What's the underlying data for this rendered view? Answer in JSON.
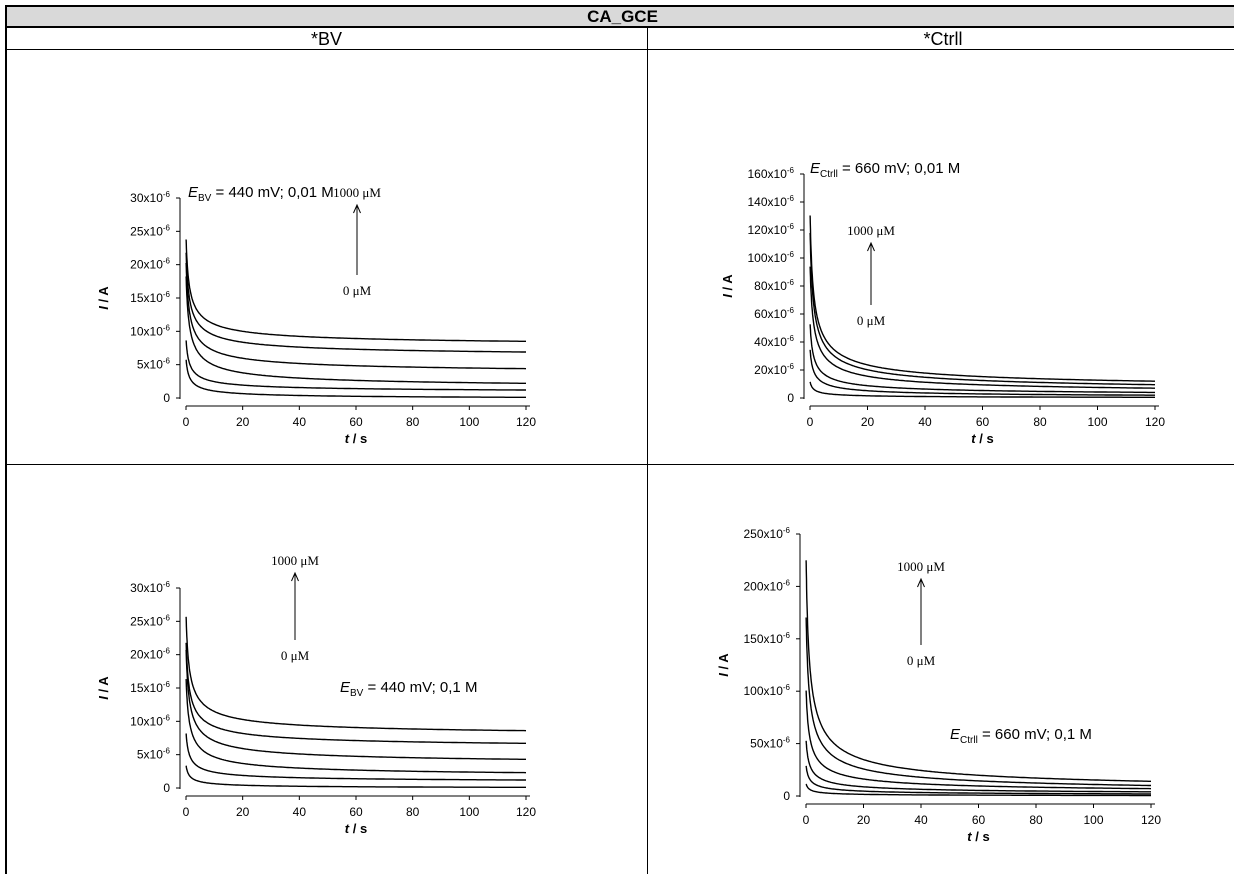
{
  "table": {
    "title": "CA_GCE",
    "col_left": "*BV",
    "col_right": "*Ctrll"
  },
  "chart_data": [
    {
      "type": "line",
      "panel": "top-left",
      "xlabel": "t / s",
      "ylabel": "I / A",
      "xlim": [
        0,
        120
      ],
      "ylim": [
        0,
        3e-05
      ],
      "xticks": [
        "0",
        "20",
        "40",
        "60",
        "80",
        "100",
        "120"
      ],
      "yticks": [
        "0",
        "5x10-6",
        "10x10-6",
        "15x10-6",
        "20x10-6",
        "25x10-6",
        "30x10-6"
      ],
      "annotation": "E_BV = 440 mV; 0,01 M",
      "arrow_top": "1000 μM",
      "arrow_bottom": "0 μM",
      "series_peak": [
        6e-06,
        9e-06,
        1.9e-05,
        2.1e-05,
        2.25e-05,
        2.45e-05
      ],
      "series_end": [
        1e-07,
        1.2e-06,
        2.2e-06,
        4.4e-06,
        6.9e-06,
        8.5e-06
      ]
    },
    {
      "type": "line",
      "panel": "top-right",
      "xlabel": "t / s",
      "ylabel": "I / A",
      "xlim": [
        0,
        120
      ],
      "ylim": [
        0,
        0.00016
      ],
      "xticks": [
        "0",
        "20",
        "40",
        "60",
        "80",
        "100",
        "120"
      ],
      "yticks": [
        "0",
        "20x10-6",
        "40x10-6",
        "60x10-6",
        "80x10-6",
        "100x10-6",
        "120x10-6",
        "140x10-6",
        "160x10-6"
      ],
      "annotation": "E_Ctrll = 660 mV; 0,01 M",
      "arrow_top": "1000 μM",
      "arrow_bottom": "0 μM",
      "series_peak": [
        1.2e-05,
        3.6e-05,
        5.5e-05,
        9.8e-05,
        0.000123,
        0.000136
      ],
      "series_end": [
        5e-07,
        2e-06,
        4e-06,
        7e-06,
        9.5e-06,
        1.2e-05
      ]
    },
    {
      "type": "line",
      "panel": "bottom-left",
      "xlabel": "t / s",
      "ylabel": "I / A",
      "xlim": [
        0,
        120
      ],
      "ylim": [
        0,
        3e-05
      ],
      "xticks": [
        "0",
        "20",
        "40",
        "60",
        "80",
        "100",
        "120"
      ],
      "yticks": [
        "0",
        "5x10-6",
        "10x10-6",
        "15x10-6",
        "20x10-6",
        "25x10-6",
        "30x10-6"
      ],
      "annotation": "E_BV = 440 mV; 0,1 M",
      "arrow_top": "1000 μM",
      "arrow_bottom": "0 μM",
      "series_peak": [
        3.5e-06,
        8.5e-06,
        1.7e-05,
        2.15e-05,
        2.25e-05,
        2.65e-05
      ],
      "series_end": [
        1e-07,
        1.2e-06,
        2.3e-06,
        4.3e-06,
        6.7e-06,
        8.6e-06
      ]
    },
    {
      "type": "line",
      "panel": "bottom-right",
      "xlabel": "t / s",
      "ylabel": "I / A",
      "xlim": [
        0,
        120
      ],
      "ylim": [
        0,
        0.00025
      ],
      "xticks": [
        "0",
        "20",
        "40",
        "60",
        "80",
        "100",
        "120"
      ],
      "yticks": [
        "0",
        "50x10-6",
        "100x10-6",
        "150x10-6",
        "200x10-6",
        "250x10-6"
      ],
      "annotation": "E_Ctrll = 660 mV; 0,1 M",
      "arrow_top": "1000 μM",
      "arrow_bottom": "0 μM",
      "series_peak": [
        1.2e-05,
        3e-05,
        5.5e-05,
        0.000105,
        0.000178,
        0.000235
      ],
      "series_end": [
        5e-07,
        2e-06,
        4e-06,
        7e-06,
        1e-05,
        1.4e-05
      ]
    }
  ]
}
